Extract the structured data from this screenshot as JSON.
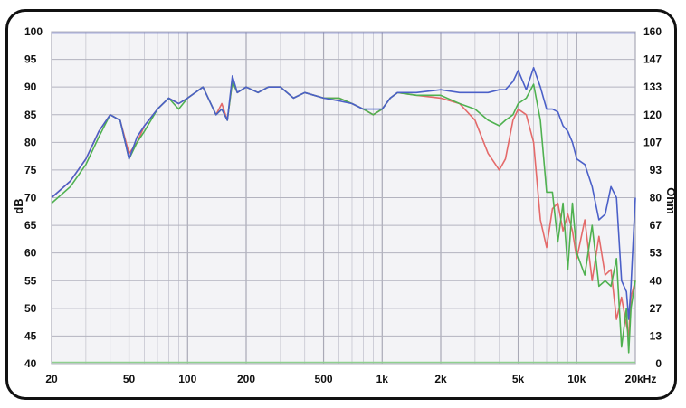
{
  "chart_data": {
    "type": "line",
    "title": "",
    "ylabel": "dB",
    "y2label": "Ohm",
    "xunit": "kHz",
    "x_scale": "log",
    "xlim": [
      20,
      20000
    ],
    "ylim": [
      40,
      100
    ],
    "y2lim": [
      0,
      160
    ],
    "grid": true,
    "legend": "none",
    "x_ticks": [
      {
        "value": 20,
        "label": "20"
      },
      {
        "value": 50,
        "label": "50"
      },
      {
        "value": 100,
        "label": "100"
      },
      {
        "value": 200,
        "label": "200"
      },
      {
        "value": 500,
        "label": "500"
      },
      {
        "value": 1000,
        "label": "1k"
      },
      {
        "value": 2000,
        "label": "2k"
      },
      {
        "value": 5000,
        "label": "5k"
      },
      {
        "value": 10000,
        "label": "10k"
      },
      {
        "value": 20000,
        "label": "20kHz"
      }
    ],
    "y_ticks": [
      "100",
      "95",
      "90",
      "85",
      "80",
      "75",
      "70",
      "65",
      "60",
      "55",
      "50",
      "45",
      "40"
    ],
    "y2_ticks": [
      "160",
      "147",
      "133",
      "120",
      "107",
      "93",
      "80",
      "67",
      "53",
      "40",
      "27",
      "13",
      "0"
    ],
    "series": [
      {
        "color": "#e46a6a",
        "x": [
          20,
          25,
          30,
          35,
          40,
          45,
          50,
          55,
          60,
          70,
          80,
          90,
          100,
          120,
          140,
          150,
          160,
          170,
          180,
          200,
          230,
          260,
          300,
          350,
          400,
          500,
          600,
          700,
          800,
          900,
          1000,
          1100,
          1200,
          1500,
          2000,
          2500,
          3000,
          3500,
          4000,
          4300,
          4700,
          5000,
          5500,
          6000,
          6500,
          7000,
          7500,
          8000,
          8500,
          9000,
          9500,
          10000,
          11000,
          12000,
          13000,
          14000,
          15000,
          16000,
          17000,
          18000,
          18500,
          19000,
          20000
        ],
        "y": [
          70,
          73,
          77,
          82,
          85,
          84,
          78,
          80,
          83,
          86,
          88,
          87,
          88,
          90,
          85,
          87,
          84,
          91,
          89,
          90,
          89,
          90,
          90,
          88,
          89,
          88,
          88,
          87,
          86,
          85,
          86,
          88,
          89,
          88.5,
          88,
          87,
          84,
          78,
          75,
          77,
          84,
          86,
          85,
          80,
          66,
          61,
          68,
          69,
          64,
          67,
          64,
          59,
          66,
          55,
          63,
          56,
          57,
          48,
          52,
          47,
          45,
          52,
          55
        ]
      },
      {
        "color": "#4fb150",
        "x": [
          20,
          25,
          30,
          35,
          40,
          45,
          50,
          55,
          60,
          70,
          80,
          90,
          100,
          120,
          140,
          150,
          160,
          170,
          180,
          200,
          230,
          260,
          300,
          350,
          400,
          500,
          600,
          700,
          800,
          900,
          1000,
          1100,
          1200,
          1500,
          2000,
          2500,
          3000,
          3500,
          4000,
          4300,
          4700,
          5000,
          5500,
          6000,
          6500,
          7000,
          7500,
          8000,
          8500,
          9000,
          9500,
          10000,
          11000,
          12000,
          13000,
          14000,
          15000,
          16000,
          17000,
          18000,
          18500,
          19000,
          20000
        ],
        "y": [
          69,
          72,
          76,
          81,
          85,
          84,
          77,
          80,
          82,
          86,
          88,
          86,
          88,
          90,
          85,
          86,
          84,
          91,
          89,
          90,
          89,
          90,
          90,
          88,
          89,
          88,
          88,
          87,
          86,
          85,
          86,
          88,
          89,
          88.5,
          88.5,
          87,
          86,
          84,
          83,
          84,
          85,
          87,
          88,
          90.5,
          84,
          71,
          71,
          62,
          69,
          57,
          69,
          60,
          56,
          65,
          54,
          55,
          54,
          59,
          43,
          50,
          42,
          50,
          55
        ]
      },
      {
        "color": "#4b60c8",
        "x": [
          20,
          25,
          30,
          35,
          40,
          45,
          50,
          55,
          60,
          70,
          80,
          90,
          100,
          120,
          140,
          150,
          160,
          170,
          180,
          200,
          230,
          260,
          300,
          350,
          400,
          500,
          600,
          700,
          800,
          900,
          1000,
          1100,
          1200,
          1500,
          2000,
          2500,
          3000,
          3500,
          4000,
          4300,
          4700,
          5000,
          5500,
          6000,
          6500,
          7000,
          7500,
          8000,
          8500,
          9000,
          9500,
          10000,
          11000,
          12000,
          13000,
          14000,
          15000,
          16000,
          17000,
          18000,
          18500,
          19000,
          20000
        ],
        "y": [
          70,
          73,
          77,
          82,
          85,
          84,
          77,
          81,
          83,
          86,
          88,
          87,
          88,
          90,
          85,
          86,
          84,
          92,
          89,
          90,
          89,
          90,
          90,
          88,
          89,
          88,
          87.5,
          87,
          86,
          86,
          86,
          88,
          89,
          89,
          89.5,
          89,
          89,
          89,
          89.5,
          89.5,
          91,
          93,
          89.5,
          93.5,
          90,
          86,
          86,
          85.5,
          83,
          82,
          80,
          77,
          76,
          72,
          66,
          67,
          72,
          70,
          55,
          53,
          48,
          54,
          70
        ]
      }
    ]
  }
}
